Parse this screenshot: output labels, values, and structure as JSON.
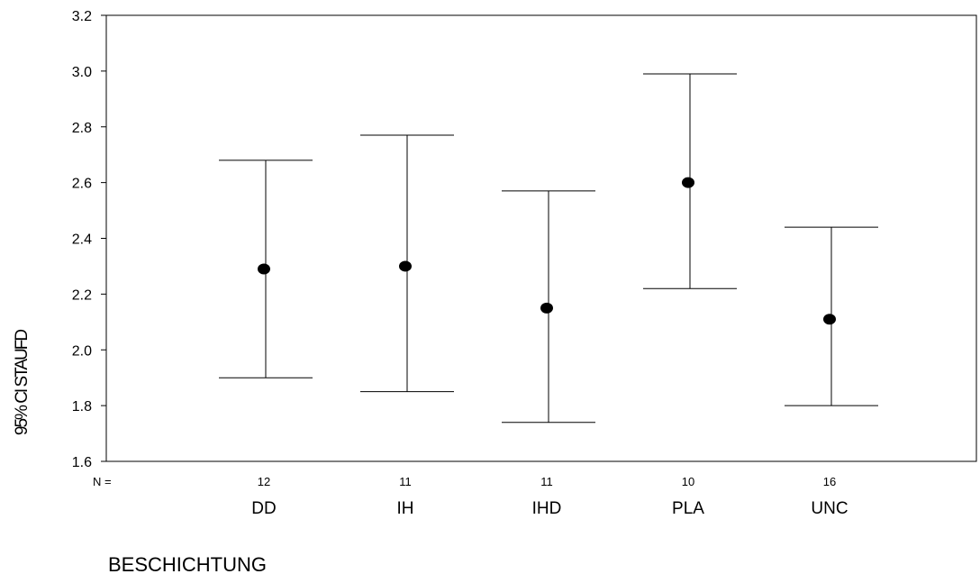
{
  "chart_data": {
    "type": "errorbar",
    "title": "",
    "ylabel": "95% CI STAUFD",
    "xlabel": "BESCHICHTUNG",
    "ylim": [
      1.6,
      3.2
    ],
    "yticks": [
      "1.6",
      "1.8",
      "2.0",
      "2.2",
      "2.4",
      "2.6",
      "2.8",
      "3.0",
      "3.2"
    ],
    "n_label": "N =",
    "categories": [
      "DD",
      "IH",
      "IHD",
      "PLA",
      "UNC"
    ],
    "n": [
      "12",
      "11",
      "11",
      "10",
      "16"
    ],
    "mean": [
      2.29,
      2.3,
      2.15,
      2.6,
      2.11
    ],
    "lower": [
      1.9,
      1.85,
      1.74,
      2.22,
      1.8
    ],
    "upper": [
      2.68,
      2.77,
      2.57,
      2.99,
      2.44
    ],
    "grid": false
  }
}
